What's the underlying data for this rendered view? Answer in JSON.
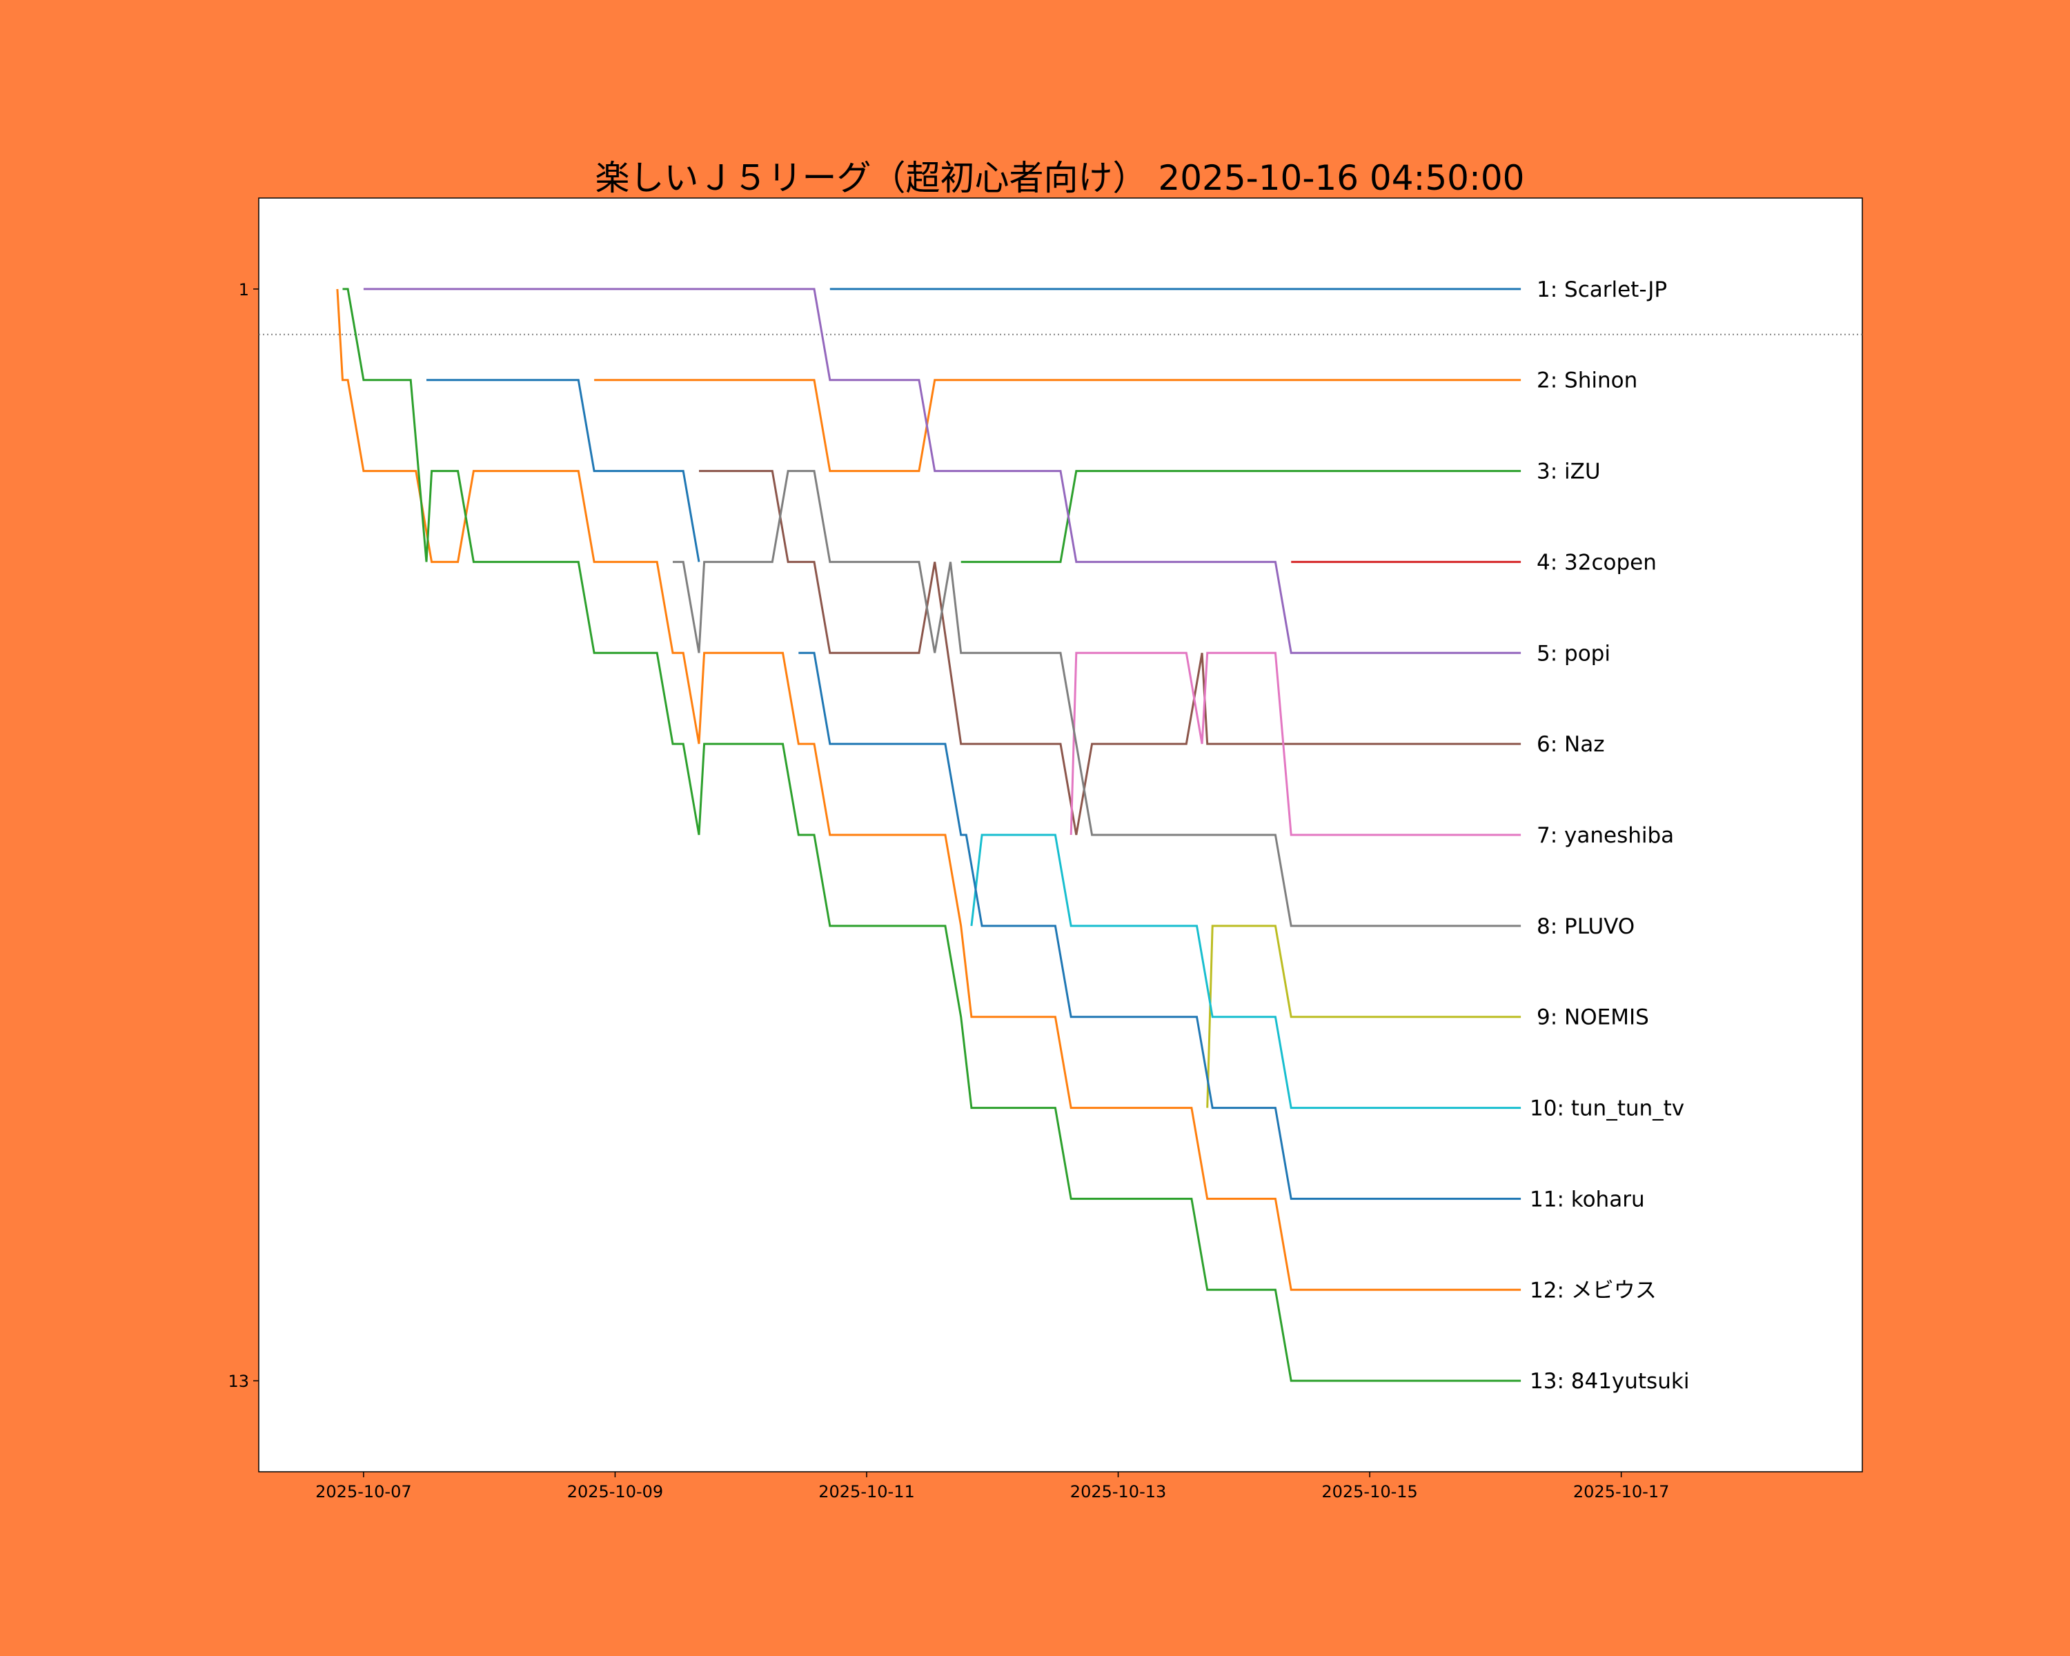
{
  "chart_data": {
    "type": "line",
    "title": "楽しいＪ５リーグ（超初心者向け） 2025-10-16 04:50:00",
    "xlabel": "",
    "ylabel": "",
    "xlim": [
      "2025-10-06 04:00",
      "2025-10-18 22:00"
    ],
    "ylim": [
      14,
      0
    ],
    "y_inverted": true,
    "grid": false,
    "legend": "none (labels at line ends, right)",
    "background_color": "#ff7f3e",
    "x_ticks": [
      "2025-10-07",
      "2025-10-09",
      "2025-10-11",
      "2025-10-13",
      "2025-10-15",
      "2025-10-17"
    ],
    "y_ticks": [
      1,
      13
    ],
    "threshold_line": {
      "rank": 1.5,
      "style": "dotted",
      "color": "#808080"
    },
    "series": [
      {
        "name": "Scarlet-JP",
        "label": "1: Scarlet-JP",
        "rank": 1,
        "color": "#1f77b4",
        "points": [
          [
            "2025-10-10 17:00",
            1
          ],
          [
            "2025-10-16 04:50",
            1
          ]
        ]
      },
      {
        "name": "Shinon",
        "label": "2: Shinon",
        "rank": 2,
        "color": "#ff7f0e",
        "points": [
          [
            "2025-10-08 20:00",
            2
          ],
          [
            "2025-10-10 14:00",
            2
          ],
          [
            "2025-10-10 17:00",
            3
          ],
          [
            "2025-10-11 10:00",
            3
          ],
          [
            "2025-10-11 13:00",
            2
          ],
          [
            "2025-10-16 04:50",
            2
          ]
        ]
      },
      {
        "name": "iZU",
        "label": "3: iZU",
        "rank": 3,
        "color": "#2ca02c",
        "points": [
          [
            "2025-10-11 18:00",
            4
          ],
          [
            "2025-10-12 13:00",
            4
          ],
          [
            "2025-10-12 16:00",
            3
          ],
          [
            "2025-10-16 04:50",
            3
          ]
        ]
      },
      {
        "name": "32copen",
        "label": "4: 32copen",
        "rank": 4,
        "color": "#d62728",
        "points": [
          [
            "2025-10-14 09:00",
            4
          ],
          [
            "2025-10-16 04:50",
            4
          ]
        ]
      },
      {
        "name": "popi",
        "label": "5: popi",
        "rank": 5,
        "color": "#9467bd",
        "points": [
          [
            "2025-10-07 00:00",
            1
          ],
          [
            "2025-10-10 14:00",
            1
          ],
          [
            "2025-10-10 17:00",
            2
          ],
          [
            "2025-10-11 10:00",
            2
          ],
          [
            "2025-10-11 13:00",
            3
          ],
          [
            "2025-10-12 13:00",
            3
          ],
          [
            "2025-10-12 16:00",
            4
          ],
          [
            "2025-10-14 06:00",
            4
          ],
          [
            "2025-10-14 09:00",
            5
          ],
          [
            "2025-10-16 04:50",
            5
          ]
        ]
      },
      {
        "name": "Naz",
        "label": "6: Naz",
        "rank": 6,
        "color": "#8c564b",
        "points": [
          [
            "2025-10-09 16:00",
            3
          ],
          [
            "2025-10-10 06:00",
            3
          ],
          [
            "2025-10-10 09:00",
            4
          ],
          [
            "2025-10-10 14:00",
            4
          ],
          [
            "2025-10-10 17:00",
            5
          ],
          [
            "2025-10-11 10:00",
            5
          ],
          [
            "2025-10-11 13:00",
            4
          ],
          [
            "2025-10-11 18:00",
            6
          ],
          [
            "2025-10-12 13:00",
            6
          ],
          [
            "2025-10-12 16:00",
            7
          ],
          [
            "2025-10-12 19:00",
            6
          ],
          [
            "2025-10-13 13:00",
            6
          ],
          [
            "2025-10-13 16:00",
            5
          ],
          [
            "2025-10-13 17:00",
            6
          ],
          [
            "2025-10-16 04:50",
            6
          ]
        ]
      },
      {
        "name": "yaneshiba",
        "label": "7: yaneshiba",
        "rank": 7,
        "color": "#e377c2",
        "points": [
          [
            "2025-10-12 15:00",
            7
          ],
          [
            "2025-10-12 16:00",
            5
          ],
          [
            "2025-10-13 13:00",
            5
          ],
          [
            "2025-10-13 16:00",
            6
          ],
          [
            "2025-10-13 17:00",
            5
          ],
          [
            "2025-10-14 06:00",
            5
          ],
          [
            "2025-10-14 09:00",
            7
          ],
          [
            "2025-10-16 04:50",
            7
          ]
        ]
      },
      {
        "name": "PLUVO",
        "label": "8: PLUVO",
        "rank": 8,
        "color": "#7f7f7f",
        "points": [
          [
            "2025-10-09 11:00",
            4
          ],
          [
            "2025-10-09 13:00",
            4
          ],
          [
            "2025-10-09 16:00",
            5
          ],
          [
            "2025-10-09 17:00",
            4
          ],
          [
            "2025-10-10 06:00",
            4
          ],
          [
            "2025-10-10 09:00",
            3
          ],
          [
            "2025-10-10 14:00",
            3
          ],
          [
            "2025-10-10 17:00",
            4
          ],
          [
            "2025-10-11 10:00",
            4
          ],
          [
            "2025-10-11 13:00",
            5
          ],
          [
            "2025-10-11 16:00",
            4
          ],
          [
            "2025-10-11 18:00",
            5
          ],
          [
            "2025-10-12 13:00",
            5
          ],
          [
            "2025-10-12 19:00",
            7
          ],
          [
            "2025-10-14 06:00",
            7
          ],
          [
            "2025-10-14 09:00",
            8
          ],
          [
            "2025-10-16 04:50",
            8
          ]
        ]
      },
      {
        "name": "NOEMIS",
        "label": "9: NOEMIS",
        "rank": 9,
        "color": "#bcbd22",
        "points": [
          [
            "2025-10-13 17:00",
            10
          ],
          [
            "2025-10-13 18:00",
            8
          ],
          [
            "2025-10-14 06:00",
            8
          ],
          [
            "2025-10-14 09:00",
            9
          ],
          [
            "2025-10-16 04:50",
            9
          ]
        ]
      },
      {
        "name": "tun_tun_tv",
        "label": "10: tun_tun_tv",
        "rank": 10,
        "color": "#17becf",
        "points": [
          [
            "2025-10-11 20:00",
            8
          ],
          [
            "2025-10-11 22:00",
            7
          ],
          [
            "2025-10-12 12:00",
            7
          ],
          [
            "2025-10-12 15:00",
            8
          ],
          [
            "2025-10-13 15:00",
            8
          ],
          [
            "2025-10-13 18:00",
            9
          ],
          [
            "2025-10-14 06:00",
            9
          ],
          [
            "2025-10-14 09:00",
            10
          ],
          [
            "2025-10-16 04:50",
            10
          ]
        ]
      },
      {
        "name": "koharu",
        "label": "11: koharu",
        "rank": 11,
        "color": "#1f77b4",
        "points": [
          [
            "2025-10-07 12:00",
            2
          ],
          [
            "2025-10-08 17:00",
            2
          ],
          [
            "2025-10-08 20:00",
            3
          ],
          [
            "2025-10-09 13:00",
            3
          ],
          [
            "2025-10-09 16:00",
            4
          ],
          null,
          [
            "2025-10-10 11:00",
            5
          ],
          [
            "2025-10-10 14:00",
            5
          ],
          [
            "2025-10-10 17:00",
            6
          ],
          [
            "2025-10-11 15:00",
            6
          ],
          [
            "2025-10-11 18:00",
            7
          ],
          [
            "2025-10-11 19:00",
            7
          ],
          [
            "2025-10-11 22:00",
            8
          ],
          [
            "2025-10-12 12:00",
            8
          ],
          [
            "2025-10-12 15:00",
            9
          ],
          [
            "2025-10-13 15:00",
            9
          ],
          [
            "2025-10-13 18:00",
            10
          ],
          [
            "2025-10-14 06:00",
            10
          ],
          [
            "2025-10-14 09:00",
            11
          ],
          [
            "2025-10-16 04:50",
            11
          ]
        ]
      },
      {
        "name": "メビウス",
        "label": "12: メビウス",
        "rank": 12,
        "color": "#ff7f0e",
        "points": [
          [
            "2025-10-06 19:00",
            1
          ],
          [
            "2025-10-06 20:00",
            2
          ],
          [
            "2025-10-06 21:00",
            2
          ],
          [
            "2025-10-07 00:00",
            3
          ],
          [
            "2025-10-07 10:00",
            3
          ],
          [
            "2025-10-07 13:00",
            4
          ],
          [
            "2025-10-07 18:00",
            4
          ],
          [
            "2025-10-07 21:00",
            3
          ],
          [
            "2025-10-08 17:00",
            3
          ],
          [
            "2025-10-08 20:00",
            4
          ],
          [
            "2025-10-09 08:00",
            4
          ],
          [
            "2025-10-09 11:00",
            5
          ],
          [
            "2025-10-09 13:00",
            5
          ],
          [
            "2025-10-09 16:00",
            6
          ],
          [
            "2025-10-09 17:00",
            5
          ],
          [
            "2025-10-10 08:00",
            5
          ],
          [
            "2025-10-10 11:00",
            6
          ],
          [
            "2025-10-10 14:00",
            6
          ],
          [
            "2025-10-10 17:00",
            7
          ],
          [
            "2025-10-11 15:00",
            7
          ],
          [
            "2025-10-11 18:00",
            8
          ],
          [
            "2025-10-11 20:00",
            9
          ],
          [
            "2025-10-12 12:00",
            9
          ],
          [
            "2025-10-12 15:00",
            10
          ],
          [
            "2025-10-13 14:00",
            10
          ],
          [
            "2025-10-13 17:00",
            11
          ],
          [
            "2025-10-14 06:00",
            11
          ],
          [
            "2025-10-14 09:00",
            12
          ],
          [
            "2025-10-16 04:50",
            12
          ]
        ]
      },
      {
        "name": "841yutsuki",
        "label": "13: 841yutsuki",
        "rank": 13,
        "color": "#2ca02c",
        "points": [
          [
            "2025-10-06 20:00",
            1
          ],
          [
            "2025-10-06 21:00",
            1
          ],
          [
            "2025-10-07 00:00",
            2
          ],
          [
            "2025-10-07 09:00",
            2
          ],
          [
            "2025-10-07 12:00",
            4
          ],
          [
            "2025-10-07 13:00",
            3
          ],
          [
            "2025-10-07 18:00",
            3
          ],
          [
            "2025-10-07 21:00",
            4
          ],
          [
            "2025-10-08 17:00",
            4
          ],
          [
            "2025-10-08 20:00",
            5
          ],
          [
            "2025-10-09 08:00",
            5
          ],
          [
            "2025-10-09 11:00",
            6
          ],
          [
            "2025-10-09 13:00",
            6
          ],
          [
            "2025-10-09 16:00",
            7
          ],
          [
            "2025-10-09 17:00",
            6
          ],
          [
            "2025-10-10 08:00",
            6
          ],
          [
            "2025-10-10 11:00",
            7
          ],
          [
            "2025-10-10 14:00",
            7
          ],
          [
            "2025-10-10 17:00",
            8
          ],
          [
            "2025-10-11 15:00",
            8
          ],
          [
            "2025-10-11 18:00",
            9
          ],
          [
            "2025-10-11 20:00",
            10
          ],
          [
            "2025-10-12 12:00",
            10
          ],
          [
            "2025-10-12 15:00",
            11
          ],
          [
            "2025-10-13 14:00",
            11
          ],
          [
            "2025-10-13 17:00",
            12
          ],
          [
            "2025-10-14 06:00",
            12
          ],
          [
            "2025-10-14 09:00",
            13
          ],
          [
            "2025-10-16 04:50",
            13
          ]
        ]
      }
    ]
  }
}
